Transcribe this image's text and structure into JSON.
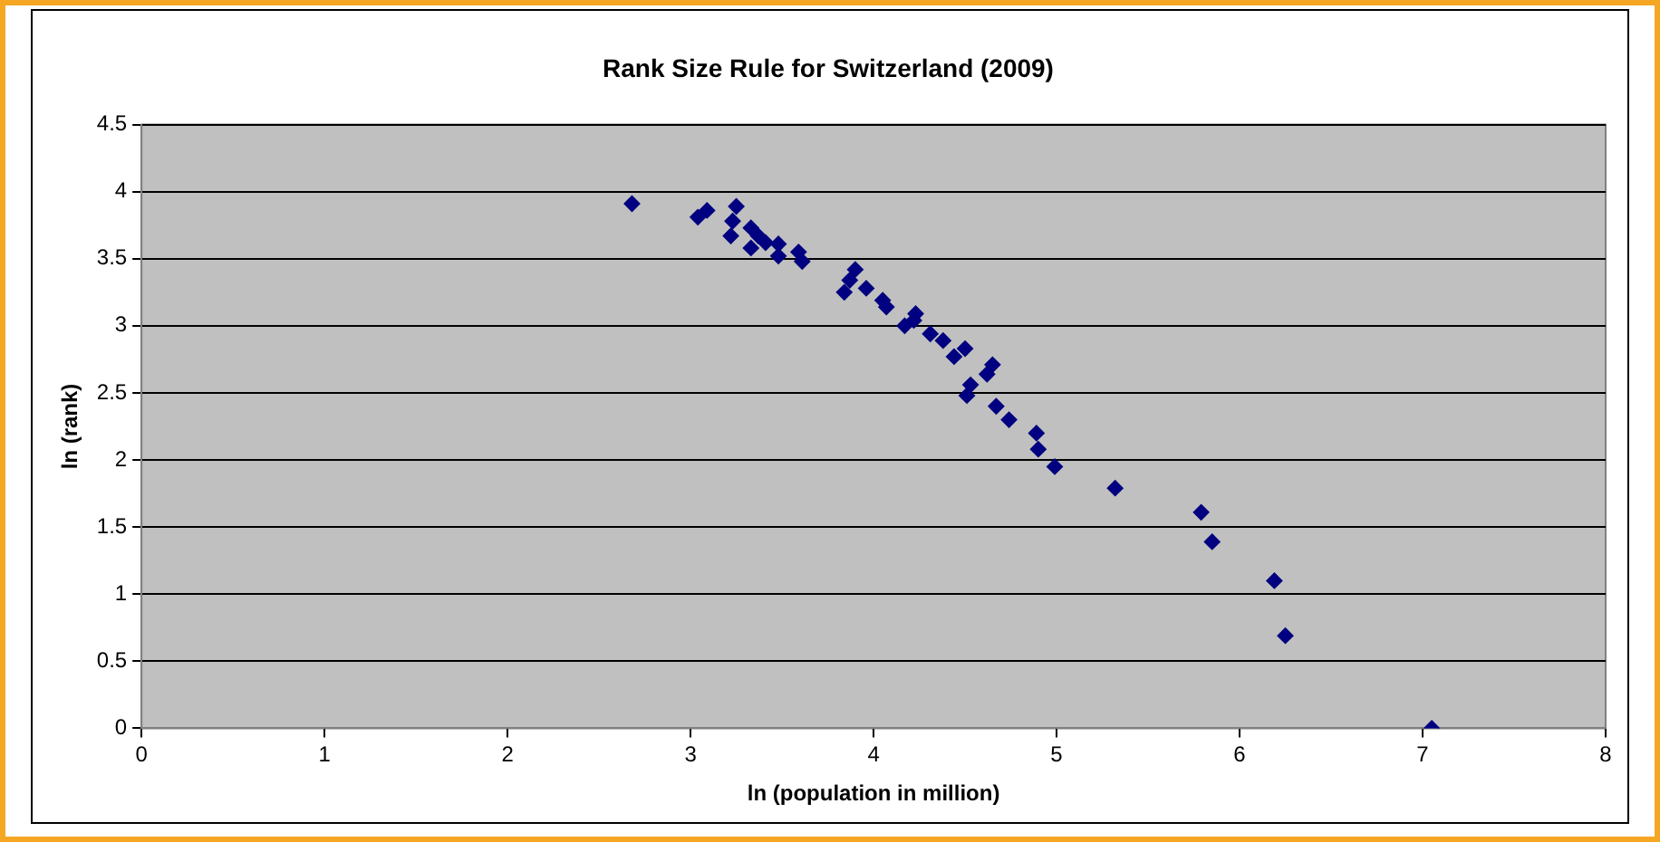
{
  "chart_data": {
    "type": "scatter",
    "title": "Rank Size Rule for Switzerland (2009)",
    "xlabel": "ln (population in million)",
    "ylabel": "ln (rank)",
    "x": [
      7.05,
      6.25,
      6.19,
      5.85,
      5.79,
      5.32,
      4.99,
      4.9,
      4.89,
      4.74,
      4.67,
      4.51,
      4.53,
      4.62,
      4.65,
      4.5,
      4.44,
      4.38,
      4.31,
      4.23,
      4.22,
      4.17,
      4.07,
      4.05,
      3.96,
      3.87,
      3.84,
      3.9,
      3.61,
      3.59,
      3.48,
      3.48,
      3.41,
      3.37,
      3.33,
      3.33,
      3.22,
      3.23,
      3.25,
      3.09,
      3.04,
      2.68
    ],
    "values": [
      0,
      0.69,
      1.1,
      1.39,
      1.61,
      1.79,
      1.95,
      2.08,
      2.2,
      2.3,
      2.4,
      2.48,
      2.56,
      2.64,
      2.71,
      2.83,
      2.77,
      2.89,
      2.94,
      3.09,
      3.04,
      3.0,
      3.14,
      3.19,
      3.28,
      3.34,
      3.25,
      3.42,
      3.48,
      3.55,
      3.52,
      3.61,
      3.62,
      3.67,
      3.58,
      3.73,
      3.67,
      3.78,
      3.89,
      3.86,
      3.81,
      3.91
    ],
    "color": "#000080",
    "marker": "diamond",
    "xlim": [
      0,
      8
    ],
    "xticks": [
      0,
      1,
      2,
      3,
      4,
      5,
      6,
      7,
      8
    ],
    "ylim": [
      0,
      4.5
    ],
    "yticks": [
      0,
      0.5,
      1,
      1.5,
      2,
      2.5,
      3,
      3.5,
      4,
      4.5
    ],
    "grid": "y",
    "legend": false
  }
}
